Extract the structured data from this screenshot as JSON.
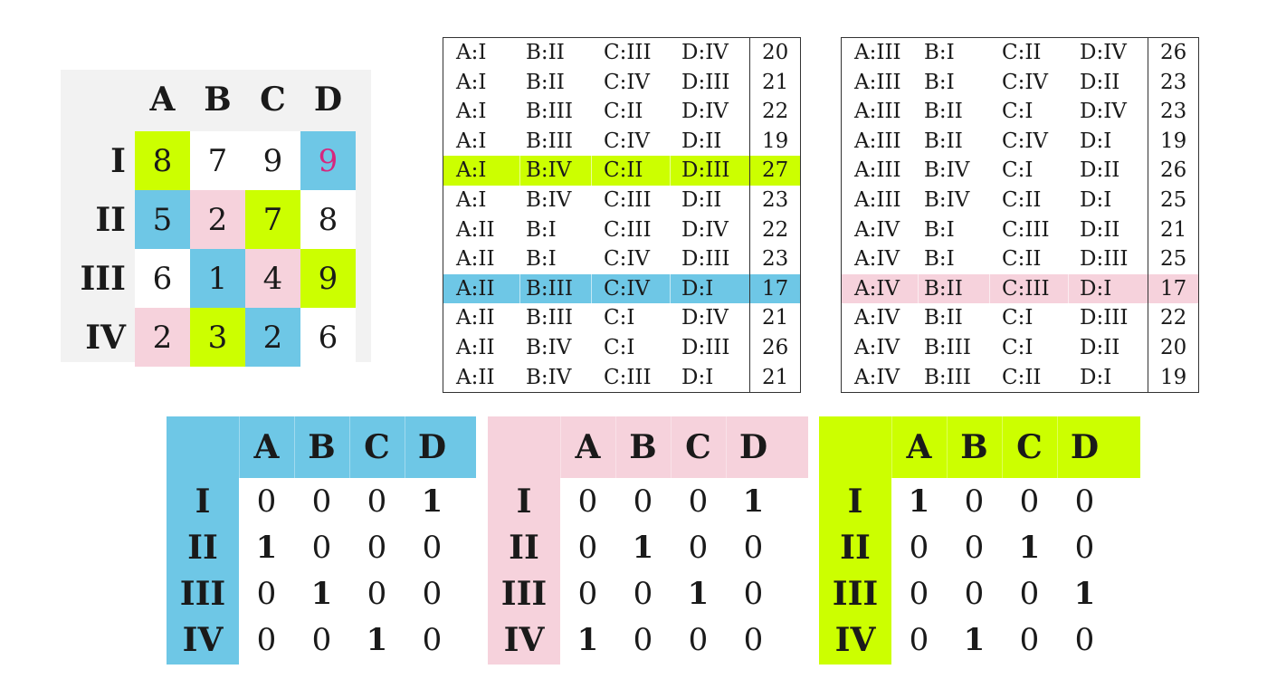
{
  "colors": {
    "green": "#ccff00",
    "blue": "#6ec7e6",
    "pink": "#f6d2dc",
    "gray": "#f2f2f2",
    "magenta_text": "#d6277e"
  },
  "cost_matrix": {
    "cols": [
      "A",
      "B",
      "C",
      "D"
    ],
    "rows": [
      {
        "label": "I",
        "values": [
          "8",
          "7",
          "9",
          "9"
        ],
        "fills": [
          "green",
          "white",
          "white",
          "blue"
        ],
        "text_colors": [
          "dark",
          "dark",
          "dark",
          "magenta"
        ]
      },
      {
        "label": "II",
        "values": [
          "5",
          "2",
          "7",
          "8"
        ],
        "fills": [
          "blue",
          "pink",
          "green",
          "white"
        ],
        "text_colors": [
          "dark",
          "dark",
          "dark",
          "dark"
        ]
      },
      {
        "label": "III",
        "values": [
          "6",
          "1",
          "4",
          "9"
        ],
        "fills": [
          "white",
          "blue",
          "pink",
          "green"
        ],
        "text_colors": [
          "dark",
          "dark",
          "dark",
          "dark"
        ]
      },
      {
        "label": "IV",
        "values": [
          "2",
          "3",
          "2",
          "6"
        ],
        "fills": [
          "pink",
          "green",
          "blue",
          "white"
        ],
        "text_colors": [
          "dark",
          "dark",
          "dark",
          "dark"
        ]
      }
    ]
  },
  "assignments_left": [
    {
      "cells": [
        "A:I",
        "B:II",
        "C:III",
        "D:IV"
      ],
      "total": "20",
      "highlight": ""
    },
    {
      "cells": [
        "A:I",
        "B:II",
        "C:IV",
        "D:III"
      ],
      "total": "21",
      "highlight": ""
    },
    {
      "cells": [
        "A:I",
        "B:III",
        "C:II",
        "D:IV"
      ],
      "total": "22",
      "highlight": ""
    },
    {
      "cells": [
        "A:I",
        "B:III",
        "C:IV",
        "D:II"
      ],
      "total": "19",
      "highlight": ""
    },
    {
      "cells": [
        "A:I",
        "B:IV",
        "C:II",
        "D:III"
      ],
      "total": "27",
      "highlight": "green"
    },
    {
      "cells": [
        "A:I",
        "B:IV",
        "C:III",
        "D:II"
      ],
      "total": "23",
      "highlight": ""
    },
    {
      "cells": [
        "A:II",
        "B:I",
        "C:III",
        "D:IV"
      ],
      "total": "22",
      "highlight": ""
    },
    {
      "cells": [
        "A:II",
        "B:I",
        "C:IV",
        "D:III"
      ],
      "total": "23",
      "highlight": ""
    },
    {
      "cells": [
        "A:II",
        "B:III",
        "C:IV",
        "D:I"
      ],
      "total": "17",
      "highlight": "blue"
    },
    {
      "cells": [
        "A:II",
        "B:III",
        "C:I",
        "D:IV"
      ],
      "total": "21",
      "highlight": ""
    },
    {
      "cells": [
        "A:II",
        "B:IV",
        "C:I",
        "D:III"
      ],
      "total": "26",
      "highlight": ""
    },
    {
      "cells": [
        "A:II",
        "B:IV",
        "C:III",
        "D:I"
      ],
      "total": "21",
      "highlight": ""
    }
  ],
  "assignments_right": [
    {
      "cells": [
        "A:III",
        "B:I",
        "C:II",
        "D:IV"
      ],
      "total": "26",
      "highlight": ""
    },
    {
      "cells": [
        "A:III",
        "B:I",
        "C:IV",
        "D:II"
      ],
      "total": "23",
      "highlight": ""
    },
    {
      "cells": [
        "A:III",
        "B:II",
        "C:I",
        "D:IV"
      ],
      "total": "23",
      "highlight": ""
    },
    {
      "cells": [
        "A:III",
        "B:II",
        "C:IV",
        "D:I"
      ],
      "total": "19",
      "highlight": ""
    },
    {
      "cells": [
        "A:III",
        "B:IV",
        "C:I",
        "D:II"
      ],
      "total": "26",
      "highlight": ""
    },
    {
      "cells": [
        "A:III",
        "B:IV",
        "C:II",
        "D:I"
      ],
      "total": "25",
      "highlight": ""
    },
    {
      "cells": [
        "A:IV",
        "B:I",
        "C:III",
        "D:II"
      ],
      "total": "21",
      "highlight": ""
    },
    {
      "cells": [
        "A:IV",
        "B:I",
        "C:II",
        "D:III"
      ],
      "total": "25",
      "highlight": ""
    },
    {
      "cells": [
        "A:IV",
        "B:II",
        "C:III",
        "D:I"
      ],
      "total": "17",
      "highlight": "pink"
    },
    {
      "cells": [
        "A:IV",
        "B:II",
        "C:I",
        "D:III"
      ],
      "total": "22",
      "highlight": ""
    },
    {
      "cells": [
        "A:IV",
        "B:III",
        "C:I",
        "D:II"
      ],
      "total": "20",
      "highlight": ""
    },
    {
      "cells": [
        "A:IV",
        "B:III",
        "C:II",
        "D:I"
      ],
      "total": "19",
      "highlight": ""
    }
  ],
  "permutation_matrices": [
    {
      "color": "blue",
      "cols": [
        "A",
        "B",
        "C",
        "D"
      ],
      "rows": [
        {
          "label": "I",
          "values": [
            "0",
            "0",
            "0",
            "1"
          ]
        },
        {
          "label": "II",
          "values": [
            "1",
            "0",
            "0",
            "0"
          ]
        },
        {
          "label": "III",
          "values": [
            "0",
            "1",
            "0",
            "0"
          ]
        },
        {
          "label": "IV",
          "values": [
            "0",
            "0",
            "1",
            "0"
          ]
        }
      ]
    },
    {
      "color": "pink",
      "cols": [
        "A",
        "B",
        "C",
        "D"
      ],
      "rows": [
        {
          "label": "I",
          "values": [
            "0",
            "0",
            "0",
            "1"
          ]
        },
        {
          "label": "II",
          "values": [
            "0",
            "1",
            "0",
            "0"
          ]
        },
        {
          "label": "III",
          "values": [
            "0",
            "0",
            "1",
            "0"
          ]
        },
        {
          "label": "IV",
          "values": [
            "1",
            "0",
            "0",
            "0"
          ]
        }
      ]
    },
    {
      "color": "green",
      "cols": [
        "A",
        "B",
        "C",
        "D"
      ],
      "rows": [
        {
          "label": "I",
          "values": [
            "1",
            "0",
            "0",
            "0"
          ]
        },
        {
          "label": "II",
          "values": [
            "0",
            "0",
            "1",
            "0"
          ]
        },
        {
          "label": "III",
          "values": [
            "0",
            "0",
            "0",
            "1"
          ]
        },
        {
          "label": "IV",
          "values": [
            "0",
            "1",
            "0",
            "0"
          ]
        }
      ]
    }
  ]
}
